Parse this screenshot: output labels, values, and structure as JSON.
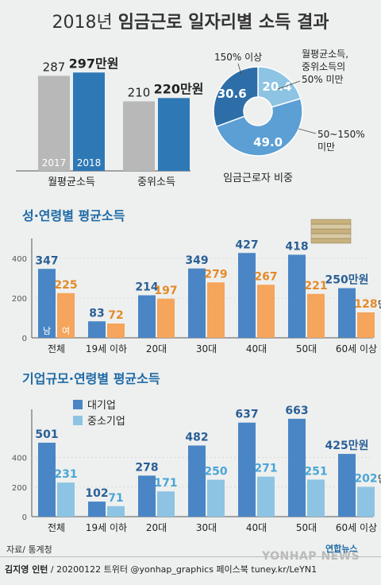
{
  "title_light": "2018년",
  "title_bold": "임금근로 일자리별 소득 결과",
  "colors": {
    "male": "#4a86c5",
    "female": "#f5a55c",
    "large": "#4a86c5",
    "small": "#8dc4e3",
    "y2017": "#b8b8b8",
    "y2018": "#2e78b5",
    "axis": "#555",
    "grid": "#c9c9c9"
  },
  "chart_data": [
    {
      "id": "income-2017-2018",
      "type": "bar",
      "categories": [
        "월평균소득",
        "중위소득"
      ],
      "series": [
        {
          "name": "2017",
          "values": [
            287,
            210
          ]
        },
        {
          "name": "2018",
          "values": [
            297,
            220
          ]
        }
      ],
      "value_labels": [
        [
          "287",
          "297만원"
        ],
        [
          "210",
          "220만원"
        ]
      ],
      "ylim": [
        0,
        320
      ]
    },
    {
      "id": "worker-share",
      "type": "pie",
      "title": "임금근로자 비중",
      "slices": [
        {
          "label": "월평균소득, 중위소득의 50% 미만",
          "value": 20.4
        },
        {
          "label": "50~150% 미만",
          "value": 49.0
        },
        {
          "label": "150% 이상",
          "value": 30.6
        }
      ],
      "slice_labels": [
        "20.4",
        "49.0",
        "30.6"
      ],
      "label_a_lines": [
        "월평균소득,",
        "중위소득의",
        "50% 미만"
      ],
      "label_b_lines": [
        "50~150%",
        "미만"
      ],
      "label_c": "150% 이상"
    },
    {
      "id": "gender-age",
      "type": "bar",
      "title": "성·연령별 평균소득",
      "categories": [
        "전체",
        "19세 이하",
        "20대",
        "30대",
        "40대",
        "50대",
        "60세 이상"
      ],
      "series": [
        {
          "name": "남",
          "values": [
            347,
            83,
            214,
            349,
            427,
            418,
            250
          ]
        },
        {
          "name": "여",
          "values": [
            225,
            72,
            197,
            279,
            267,
            221,
            128
          ]
        }
      ],
      "ylim": [
        0,
        460
      ],
      "yticks": [
        0,
        200,
        400
      ],
      "unit_label": "만원"
    },
    {
      "id": "company-age",
      "type": "bar",
      "title": "기업규모·연령별 평균소득",
      "categories": [
        "전체",
        "19세 이하",
        "20대",
        "30대",
        "40대",
        "50대",
        "60세 이상"
      ],
      "series": [
        {
          "name": "대기업",
          "values": [
            501,
            102,
            278,
            482,
            637,
            663,
            425
          ]
        },
        {
          "name": "중소기업",
          "values": [
            231,
            71,
            171,
            250,
            271,
            251,
            202
          ]
        }
      ],
      "ylim": [
        0,
        700
      ],
      "yticks": [
        0,
        200,
        400
      ],
      "unit_label": "만원"
    }
  ],
  "footer": {
    "source": "자료/ 통계청",
    "credit_name": "김지영 인턴",
    "credit_rest": " / 20200122  트위터 @yonhap_graphics  페이스북 tuney.kr/LeYN1",
    "logo": "연합뉴스",
    "watermark": "YONHAP NEWS"
  }
}
